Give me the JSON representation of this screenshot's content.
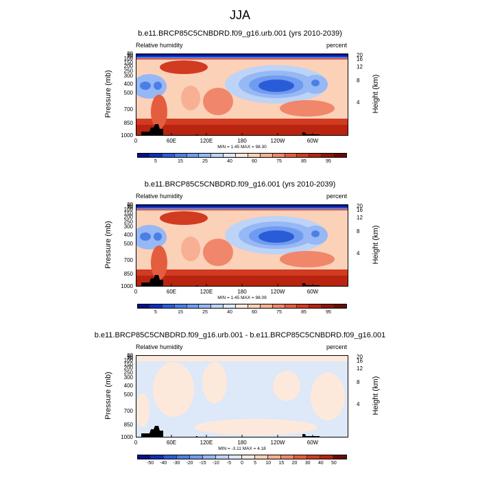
{
  "figure_title": "JJA",
  "panels": [
    {
      "title": "b.e11.BRCP85C5CNBDRD.f09_g16.urb.001 (yrs 2010-2039)",
      "variable": "Relative humidity",
      "units": "percent",
      "minmax": "MIN =   1.45  MAX =  98.30",
      "colorbar_labels": [
        "5",
        "15",
        "25",
        "40",
        "60",
        "75",
        "85",
        "95"
      ],
      "colorbar_colors": [
        "#05108a",
        "#0a2fbf",
        "#2b5cd8",
        "#4a7fe6",
        "#6f9cf0",
        "#96b8f4",
        "#bdd3f7",
        "#dde8f8",
        "#fde9dc",
        "#fbd1b8",
        "#f7b093",
        "#f0866a",
        "#e45d3e",
        "#d13b22",
        "#b8240f",
        "#8f1505",
        "#6b0b02"
      ],
      "chart_data": {
        "type": "heatmap",
        "title": "b.e11.BRCP85C5CNBDRD.f09_g16.urb.001 (yrs 2010-2039)",
        "xlabel": "",
        "ylabel": "Pressure (mb)",
        "ylabel_right": "Height (km)",
        "x_ticks": [
          "0",
          "60E",
          "120E",
          "180",
          "120W",
          "60W"
        ],
        "y_ticks": [
          "1000",
          "850",
          "700",
          "500",
          "400",
          "300",
          "250",
          "200",
          "150",
          "100",
          "70",
          "50",
          "30"
        ],
        "y_ticks_right": [
          "4",
          "8",
          "12",
          "16",
          "20"
        ],
        "min": 1.45,
        "max": 98.3,
        "levels": [
          5,
          15,
          25,
          40,
          60,
          75,
          85,
          95
        ]
      }
    },
    {
      "title": "b.e11.BRCP85C5CNBDRD.f09_g16.001 (yrs 2010-2039)",
      "variable": "Relative humidity",
      "units": "percent",
      "minmax": "MIN =   1.45  MAX =  98.09",
      "colorbar_labels": [
        "5",
        "15",
        "25",
        "40",
        "60",
        "75",
        "85",
        "95"
      ],
      "colorbar_colors": [
        "#05108a",
        "#0a2fbf",
        "#2b5cd8",
        "#4a7fe6",
        "#6f9cf0",
        "#96b8f4",
        "#bdd3f7",
        "#dde8f8",
        "#fde9dc",
        "#fbd1b8",
        "#f7b093",
        "#f0866a",
        "#e45d3e",
        "#d13b22",
        "#b8240f",
        "#8f1505",
        "#6b0b02"
      ],
      "chart_data": {
        "type": "heatmap",
        "title": "b.e11.BRCP85C5CNBDRD.f09_g16.001 (yrs 2010-2039)",
        "xlabel": "",
        "ylabel": "Pressure (mb)",
        "ylabel_right": "Height (km)",
        "x_ticks": [
          "0",
          "60E",
          "120E",
          "180",
          "120W",
          "60W"
        ],
        "y_ticks": [
          "1000",
          "850",
          "700",
          "500",
          "400",
          "300",
          "250",
          "200",
          "150",
          "100",
          "70",
          "50",
          "30"
        ],
        "y_ticks_right": [
          "4",
          "8",
          "12",
          "16",
          "20"
        ],
        "min": 1.45,
        "max": 98.09,
        "levels": [
          5,
          15,
          25,
          40,
          60,
          75,
          85,
          95
        ]
      }
    },
    {
      "title": "b.e11.BRCP85C5CNBDRD.f09_g16.urb.001 - b.e11.BRCP85C5CNBDRD.f09_g16.001",
      "variable": "Relative humidity",
      "units": "percent",
      "minmax": "MIN =  -3.11  MAX =   4.18",
      "colorbar_labels": [
        "-50",
        "-40",
        "-30",
        "-20",
        "-15",
        "-10",
        "-5",
        "0",
        "5",
        "10",
        "15",
        "20",
        "30",
        "40",
        "50"
      ],
      "colorbar_colors": [
        "#05108a",
        "#0a2fbf",
        "#2b5cd8",
        "#4a7fe6",
        "#6f9cf0",
        "#96b8f4",
        "#bdd3f7",
        "#dde8f8",
        "#fde9dc",
        "#fbd1b8",
        "#f7b093",
        "#f0866a",
        "#e45d3e",
        "#d13b22",
        "#b8240f",
        "#6b0b02"
      ],
      "chart_data": {
        "type": "heatmap",
        "title": "b.e11.BRCP85C5CNBDRD.f09_g16.urb.001 - b.e11.BRCP85C5CNBDRD.f09_g16.001",
        "xlabel": "",
        "ylabel": "Pressure (mb)",
        "ylabel_right": "Height (km)",
        "x_ticks": [
          "0",
          "60E",
          "120E",
          "180",
          "120W",
          "60W"
        ],
        "y_ticks": [
          "1000",
          "850",
          "700",
          "500",
          "400",
          "300",
          "250",
          "200",
          "150",
          "100",
          "70",
          "50",
          "30"
        ],
        "y_ticks_right": [
          "4",
          "8",
          "12",
          "16",
          "20"
        ],
        "min": -3.11,
        "max": 4.18,
        "levels": [
          -50,
          -40,
          -30,
          -20,
          -15,
          -10,
          -5,
          0,
          5,
          10,
          15,
          20,
          30,
          40,
          50
        ]
      }
    }
  ]
}
